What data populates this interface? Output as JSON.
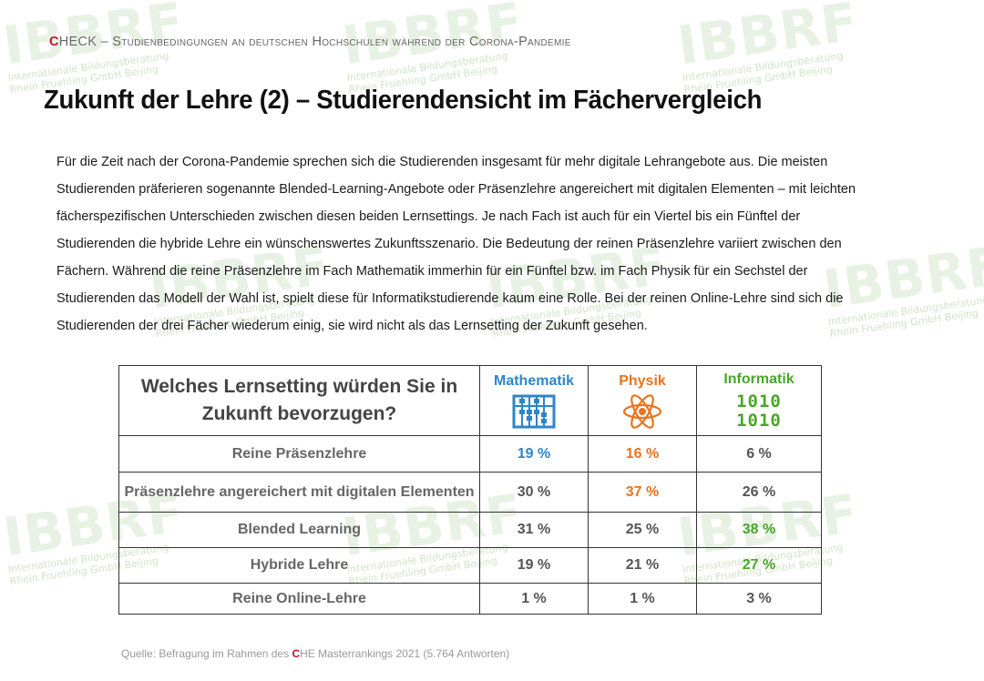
{
  "header": {
    "brand_first": "C",
    "brand_rest": "HECK",
    "subtitle": " – Studienbedingungen an deutschen Hochschulen während der Corona-Pandemie"
  },
  "title": "Zukunft der Lehre (2) – Studierendensicht im Fächervergleich",
  "body_lines": [
    "Für die Zeit nach der Corona-Pandemie sprechen sich die Studierenden insgesamt für mehr digitale Lehrangebote aus. Die meisten",
    "Studierenden präferieren sogenannte Blended-Learning-Angebote oder Präsenzlehre angereichert mit digitalen Elementen – mit leichten",
    "fächerspezifischen Unterschieden zwischen diesen beiden Lernsettings. Je nach Fach ist auch für ein Viertel bis ein Fünftel der",
    "Studierenden die hybride Lehre ein wünschenswertes Zukunftsszenario. Die Bedeutung der reinen Präsenzlehre variiert zwischen den",
    "Fächern. Während die reine Präsenzlehre im Fach Mathematik immerhin für ein Fünftel bzw. im Fach Physik für ein Sechstel der",
    "Studierenden das Modell der Wahl ist, spielt diese für Informatikstudierende kaum eine Rolle. Bei der reinen Online-Lehre sind sich die",
    "Studierenden der drei Fächer wiederum einig, sie wird nicht als das Lernsetting der Zukunft gesehen."
  ],
  "table": {
    "question_line1": "Welches Lernsetting würden Sie in",
    "question_line2": "Zukunft bevorzugen?",
    "subjects": [
      {
        "name": "Mathematik",
        "color": "#2e86c9",
        "icon": "abacus-icon"
      },
      {
        "name": "Physik",
        "color": "#e8731e",
        "icon": "atom-icon"
      },
      {
        "name": "Informatik",
        "color": "#49a62a",
        "icon": "binary-icon",
        "icon_text_1": "1010",
        "icon_text_2": "1010"
      }
    ],
    "rows": [
      {
        "label": "Reine Präsenzlehre",
        "values": [
          "19 %",
          "16 %",
          "6 %"
        ]
      },
      {
        "label": "Präsenzlehre angereichert mit digitalen Elementen",
        "values": [
          "30 %",
          "37 %",
          "26 %"
        ]
      },
      {
        "label": "Blended Learning",
        "values": [
          "31 %",
          "25 %",
          "38 %"
        ]
      },
      {
        "label": "Hybride Lehre",
        "values": [
          "19 %",
          "21 %",
          "27 %"
        ]
      },
      {
        "label": "Reine Online-Lehre",
        "values": [
          "1 %",
          "1 %",
          "3 %"
        ]
      }
    ]
  },
  "source": {
    "prefix": "Quelle: Befragung im Rahmen des ",
    "brand_c": "C",
    "suffix": "HE Masterrankings 2021 (5.764 Antworten)"
  },
  "watermark": {
    "logo": "IBBRF",
    "line1": "Internationale Bildungsberatung",
    "line2": "Rhein Fruehling GmbH Beijing"
  }
}
